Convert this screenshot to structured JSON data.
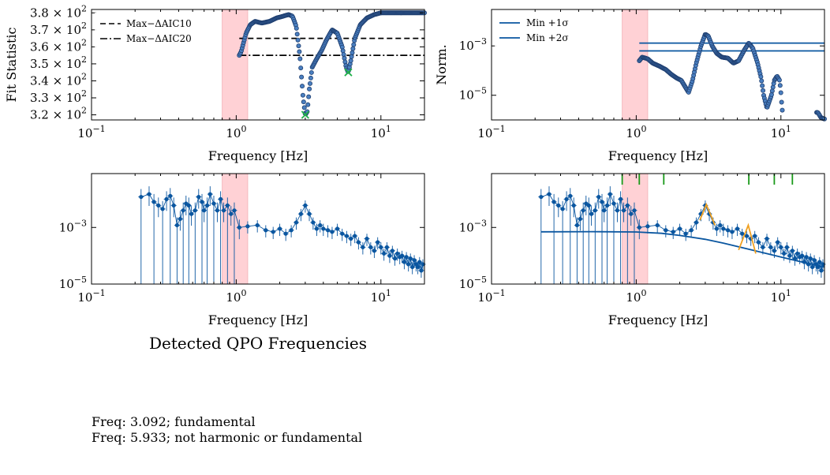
{
  "figure": {
    "section_title": "Detected QPO Frequencies",
    "notes": [
      "Freq: 3.092; fundamental",
      "Freq: 5.933; not harmonic or fundamental"
    ]
  },
  "chart_data": [
    {
      "id": "p1",
      "type": "scatter",
      "xlabel": "Frequency [Hz]",
      "ylabel": "Fit Statistic",
      "xscale": "log",
      "xlim": [
        0.1,
        20
      ],
      "ylim": [
        317,
        382
      ],
      "xticks": [
        {
          "v": 0.1,
          "b": "10",
          "e": "−1"
        },
        {
          "v": 1,
          "b": "10",
          "e": "0"
        },
        {
          "v": 10,
          "b": "10",
          "e": "1"
        }
      ],
      "yticks": [
        {
          "v": 320,
          "b": "3.2 × 10",
          "e": "2"
        },
        {
          "v": 330,
          "b": "3.3 × 10",
          "e": "2"
        },
        {
          "v": 340,
          "b": "3.4 × 10",
          "e": "2"
        },
        {
          "v": 350,
          "b": "3.5 × 10",
          "e": "2"
        },
        {
          "v": 360,
          "b": "3.6 × 10",
          "e": "2"
        },
        {
          "v": 370,
          "b": "3.7 × 10",
          "e": "2"
        },
        {
          "v": 380,
          "b": "3.8 × 10",
          "e": "2"
        }
      ],
      "shaded_band": [
        0.8,
        1.2
      ],
      "hlines": [
        {
          "label": "Max−ΔAIC10",
          "y": 365,
          "x0": 1.05,
          "dash": "7 4"
        },
        {
          "label": "Max−ΔAIC20",
          "y": 355,
          "x0": 1.05,
          "dash": "9 3 2 3"
        }
      ],
      "legend": "top-left",
      "curve": [
        [
          1.05,
          355
        ],
        [
          1.08,
          357
        ],
        [
          1.12,
          362
        ],
        [
          1.17,
          368
        ],
        [
          1.25,
          373
        ],
        [
          1.35,
          375
        ],
        [
          1.5,
          374
        ],
        [
          1.7,
          375
        ],
        [
          1.9,
          377
        ],
        [
          2.1,
          378
        ],
        [
          2.3,
          379
        ],
        [
          2.45,
          378
        ],
        [
          2.6,
          372
        ],
        [
          2.75,
          355
        ],
        [
          2.9,
          330
        ],
        [
          3.0,
          320
        ],
        [
          3.1,
          322
        ],
        [
          3.2,
          335
        ],
        [
          3.35,
          348
        ],
        [
          3.6,
          353
        ],
        [
          3.9,
          358
        ],
        [
          4.2,
          364
        ],
        [
          4.6,
          370
        ],
        [
          5.0,
          368
        ],
        [
          5.4,
          360
        ],
        [
          5.75,
          348
        ],
        [
          5.95,
          345
        ],
        [
          6.2,
          352
        ],
        [
          6.6,
          365
        ],
        [
          7.2,
          373
        ],
        [
          8.0,
          377
        ],
        [
          9.0,
          379
        ],
        [
          10,
          380
        ],
        [
          12,
          380
        ],
        [
          15,
          380
        ],
        [
          20,
          380
        ]
      ],
      "markers": [
        {
          "x": 3.0,
          "y": 320
        },
        {
          "x": 5.95,
          "y": 345
        }
      ]
    },
    {
      "id": "p2",
      "type": "scatter",
      "xlabel": "Frequency [Hz]",
      "ylabel": "Norm.",
      "xscale": "log",
      "yscale": "log",
      "xlim": [
        0.1,
        20
      ],
      "ylim": [
        1e-06,
        0.03
      ],
      "xticks": [
        {
          "v": 0.1,
          "b": "10",
          "e": "−1"
        },
        {
          "v": 1,
          "b": "10",
          "e": "0"
        },
        {
          "v": 10,
          "b": "10",
          "e": "1"
        }
      ],
      "yticks": [
        {
          "v": 1e-05,
          "b": "10",
          "e": "−5"
        },
        {
          "v": 0.001,
          "b": "10",
          "e": "−3"
        }
      ],
      "shaded_band": [
        0.8,
        1.2
      ],
      "hlines": [
        {
          "label": "Min +1σ",
          "y": 0.0013,
          "x0": 1.05
        },
        {
          "label": "Min +2σ",
          "y": 0.00063,
          "x0": 1.05
        }
      ],
      "legend": "top-left",
      "curve": [
        [
          1.05,
          0.00025
        ],
        [
          1.1,
          0.00035
        ],
        [
          1.2,
          0.0003
        ],
        [
          1.3,
          0.0002
        ],
        [
          1.45,
          0.00015
        ],
        [
          1.6,
          0.00011
        ],
        [
          1.75,
          7e-05
        ],
        [
          1.9,
          5e-05
        ],
        [
          2.05,
          4e-05
        ],
        [
          2.2,
          2e-05
        ],
        [
          2.3,
          1.3e-05
        ],
        [
          2.45,
          4e-05
        ],
        [
          2.6,
          0.0002
        ],
        [
          2.8,
          0.001
        ],
        [
          3.0,
          0.003
        ],
        [
          3.15,
          0.0025
        ],
        [
          3.35,
          0.001
        ],
        [
          3.6,
          0.0005
        ],
        [
          3.9,
          0.00035
        ],
        [
          4.3,
          0.00032
        ],
        [
          4.7,
          0.0002
        ],
        [
          5.1,
          0.00025
        ],
        [
          5.6,
          0.0007
        ],
        [
          6.0,
          0.0013
        ],
        [
          6.4,
          0.0008
        ],
        [
          6.9,
          0.0002
        ],
        [
          7.3,
          5e-05
        ],
        [
          7.6,
          1e-05
        ],
        [
          8.0,
          3e-06
        ],
        [
          8.6,
          1e-05
        ],
        [
          9.0,
          4e-05
        ],
        [
          9.4,
          6e-05
        ],
        [
          9.8,
          4e-05
        ],
        [
          10.0,
          1.2e-05
        ],
        [
          10.2,
          2.5e-06
        ],
        [
          18,
          2e-06
        ],
        [
          19,
          1.2e-06
        ],
        [
          20,
          1.1e-06
        ]
      ]
    },
    {
      "id": "p3",
      "type": "scatter",
      "xlabel": "Frequency [Hz]",
      "ylabel": "",
      "xscale": "log",
      "yscale": "log",
      "xlim": [
        0.1,
        20
      ],
      "ylim": [
        1e-05,
        0.08
      ],
      "xticks": [
        {
          "v": 0.1,
          "b": "10",
          "e": "−1"
        },
        {
          "v": 1,
          "b": "10",
          "e": "0"
        },
        {
          "v": 10,
          "b": "10",
          "e": "1"
        }
      ],
      "yticks": [
        {
          "v": 1e-05,
          "b": "10",
          "e": "−5"
        },
        {
          "v": 0.001,
          "b": "10",
          "e": "−3"
        }
      ],
      "shaded_band": [
        0.8,
        1.2
      ],
      "points": [
        [
          0.22,
          0.012
        ],
        [
          0.25,
          0.015
        ],
        [
          0.27,
          0.008
        ],
        [
          0.29,
          0.006
        ],
        [
          0.31,
          0.0045
        ],
        [
          0.33,
          0.01
        ],
        [
          0.35,
          0.013
        ],
        [
          0.37,
          0.006
        ],
        [
          0.39,
          0.0012
        ],
        [
          0.41,
          0.002
        ],
        [
          0.43,
          0.004
        ],
        [
          0.45,
          0.007
        ],
        [
          0.47,
          0.006
        ],
        [
          0.49,
          0.003
        ],
        [
          0.52,
          0.004
        ],
        [
          0.55,
          0.012
        ],
        [
          0.58,
          0.008
        ],
        [
          0.6,
          0.004
        ],
        [
          0.63,
          0.006
        ],
        [
          0.66,
          0.015
        ],
        [
          0.7,
          0.007
        ],
        [
          0.74,
          0.004
        ],
        [
          0.78,
          0.01
        ],
        [
          0.82,
          0.004
        ],
        [
          0.87,
          0.006
        ],
        [
          0.92,
          0.003
        ],
        [
          0.97,
          0.004
        ],
        [
          1.05,
          0.001
        ],
        [
          1.2,
          0.0011
        ],
        [
          1.4,
          0.0012
        ],
        [
          1.6,
          0.0008
        ],
        [
          1.8,
          0.0007
        ],
        [
          2.0,
          0.0009
        ],
        [
          2.2,
          0.0006
        ],
        [
          2.4,
          0.0008
        ],
        [
          2.6,
          0.0015
        ],
        [
          2.8,
          0.003
        ],
        [
          3.0,
          0.006
        ],
        [
          3.2,
          0.003
        ],
        [
          3.4,
          0.0015
        ],
        [
          3.6,
          0.0009
        ],
        [
          3.8,
          0.0012
        ],
        [
          4.0,
          0.0009
        ],
        [
          4.3,
          0.0008
        ],
        [
          4.6,
          0.0007
        ],
        [
          5.0,
          0.0009
        ],
        [
          5.4,
          0.0006
        ],
        [
          5.8,
          0.0005
        ],
        [
          6.2,
          0.0004
        ],
        [
          6.6,
          0.0005
        ],
        [
          7.0,
          0.0003
        ],
        [
          7.5,
          0.0002
        ],
        [
          8.0,
          0.0004
        ],
        [
          8.5,
          0.0002
        ],
        [
          9.0,
          0.00015
        ],
        [
          9.5,
          0.0003
        ],
        [
          10,
          0.0002
        ],
        [
          10.5,
          0.00012
        ],
        [
          11,
          0.0002
        ],
        [
          11.5,
          0.0001
        ],
        [
          12,
          0.00015
        ],
        [
          12.5,
          8e-05
        ],
        [
          13,
          0.00012
        ],
        [
          13.5,
          9e-05
        ],
        [
          14,
          0.0001
        ],
        [
          14.5,
          6e-05
        ],
        [
          15,
          9e-05
        ],
        [
          15.5,
          5e-05
        ],
        [
          16,
          8e-05
        ],
        [
          16.5,
          4e-05
        ],
        [
          17,
          7e-05
        ],
        [
          17.5,
          5e-05
        ],
        [
          18,
          4e-05
        ],
        [
          18.5,
          6e-05
        ],
        [
          19,
          3e-05
        ],
        [
          19.5,
          5e-05
        ]
      ]
    },
    {
      "id": "p4",
      "type": "scatter",
      "xlabel": "Frequency [Hz]",
      "ylabel": "",
      "xscale": "log",
      "yscale": "log",
      "xlim": [
        0.1,
        20
      ],
      "ylim": [
        1e-05,
        0.08
      ],
      "xticks": [
        {
          "v": 0.1,
          "b": "10",
          "e": "−1"
        },
        {
          "v": 1,
          "b": "10",
          "e": "0"
        },
        {
          "v": 10,
          "b": "10",
          "e": "1"
        }
      ],
      "yticks": [
        {
          "v": 1e-05,
          "b": "10",
          "e": "−5"
        },
        {
          "v": 0.001,
          "b": "10",
          "e": "−3"
        }
      ],
      "shaded_band": [
        0.8,
        1.2
      ],
      "points": [
        [
          0.22,
          0.012
        ],
        [
          0.25,
          0.015
        ],
        [
          0.27,
          0.008
        ],
        [
          0.29,
          0.006
        ],
        [
          0.31,
          0.0045
        ],
        [
          0.33,
          0.01
        ],
        [
          0.35,
          0.013
        ],
        [
          0.37,
          0.006
        ],
        [
          0.39,
          0.0012
        ],
        [
          0.41,
          0.002
        ],
        [
          0.43,
          0.004
        ],
        [
          0.45,
          0.007
        ],
        [
          0.47,
          0.006
        ],
        [
          0.49,
          0.003
        ],
        [
          0.52,
          0.004
        ],
        [
          0.55,
          0.012
        ],
        [
          0.58,
          0.008
        ],
        [
          0.6,
          0.004
        ],
        [
          0.63,
          0.006
        ],
        [
          0.66,
          0.015
        ],
        [
          0.7,
          0.007
        ],
        [
          0.74,
          0.004
        ],
        [
          0.78,
          0.01
        ],
        [
          0.82,
          0.004
        ],
        [
          0.87,
          0.006
        ],
        [
          0.92,
          0.003
        ],
        [
          0.97,
          0.004
        ],
        [
          1.05,
          0.001
        ],
        [
          1.2,
          0.0011
        ],
        [
          1.4,
          0.0012
        ],
        [
          1.6,
          0.0008
        ],
        [
          1.8,
          0.0007
        ],
        [
          2.0,
          0.0009
        ],
        [
          2.2,
          0.0006
        ],
        [
          2.4,
          0.0008
        ],
        [
          2.6,
          0.0015
        ],
        [
          2.8,
          0.003
        ],
        [
          3.0,
          0.006
        ],
        [
          3.2,
          0.003
        ],
        [
          3.4,
          0.0015
        ],
        [
          3.6,
          0.0009
        ],
        [
          3.8,
          0.0012
        ],
        [
          4.0,
          0.0009
        ],
        [
          4.3,
          0.0008
        ],
        [
          4.6,
          0.0007
        ],
        [
          5.0,
          0.0009
        ],
        [
          5.4,
          0.0006
        ],
        [
          5.8,
          0.0005
        ],
        [
          6.2,
          0.0004
        ],
        [
          6.6,
          0.0005
        ],
        [
          7.0,
          0.0003
        ],
        [
          7.5,
          0.0002
        ],
        [
          8.0,
          0.0004
        ],
        [
          8.5,
          0.0002
        ],
        [
          9.0,
          0.00015
        ],
        [
          9.5,
          0.0003
        ],
        [
          10,
          0.0002
        ],
        [
          10.5,
          0.00012
        ],
        [
          11,
          0.0002
        ],
        [
          11.5,
          0.0001
        ],
        [
          12,
          0.00015
        ],
        [
          12.5,
          8e-05
        ],
        [
          13,
          0.00012
        ],
        [
          13.5,
          9e-05
        ],
        [
          14,
          0.0001
        ],
        [
          14.5,
          6e-05
        ],
        [
          15,
          9e-05
        ],
        [
          15.5,
          5e-05
        ],
        [
          16,
          8e-05
        ],
        [
          16.5,
          4e-05
        ],
        [
          17,
          7e-05
        ],
        [
          17.5,
          5e-05
        ],
        [
          18,
          4e-05
        ],
        [
          18.5,
          6e-05
        ],
        [
          19,
          3e-05
        ],
        [
          19.5,
          5e-05
        ]
      ],
      "model_curve": [
        [
          0.22,
          0.0007
        ],
        [
          0.5,
          0.00071
        ],
        [
          1.0,
          0.00069
        ],
        [
          1.5,
          0.00062
        ],
        [
          2.0,
          0.00052
        ],
        [
          3.0,
          0.00038
        ],
        [
          4.0,
          0.00028
        ],
        [
          6.0,
          0.00017
        ],
        [
          10,
          9e-05
        ],
        [
          14,
          6e-05
        ],
        [
          20,
          4e-05
        ]
      ],
      "qpo_peaks": [
        [
          [
            2.75,
            0.0018
          ],
          [
            3.05,
            0.0065
          ],
          [
            3.5,
            0.0012
          ]
        ],
        [
          [
            5.1,
            0.00016
          ],
          [
            5.95,
            0.0012
          ],
          [
            6.7,
            0.00012
          ]
        ]
      ],
      "top_ticks": [
        0.8,
        1.05,
        1.55,
        6.0,
        9.0,
        12.0
      ]
    }
  ],
  "colors": {
    "marker_fill": "#4a7fc0",
    "marker_edge": "#1f3f70",
    "points": "#0a56a0",
    "band": "#ffb3ba",
    "band_edge": "#f08c96",
    "qpo": "#f0a020",
    "top_ticks": "#1a9a1a",
    "green_x": "#22b24a"
  }
}
